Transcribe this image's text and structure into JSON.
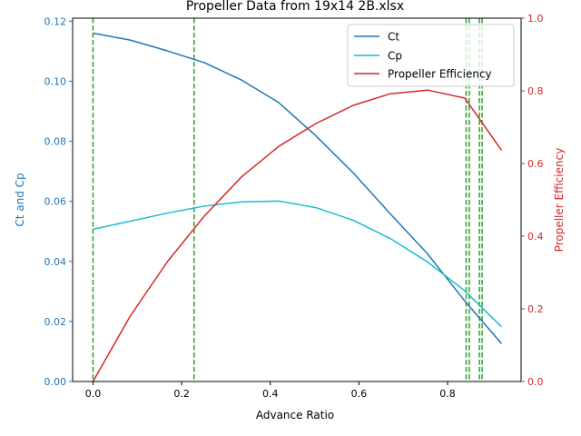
{
  "chart_data": {
    "type": "line",
    "title": "Propeller Data from 19x14 2B.xlsx",
    "xlabel": "Advance Ratio",
    "ylabel": "Ct and Cp",
    "y2label": "Propeller Efficiency",
    "xlim": [
      -0.046,
      0.966
    ],
    "ylim": [
      0,
      0.121
    ],
    "y2lim": [
      0,
      1.0
    ],
    "xticks": [
      "0.0",
      "0.2",
      "0.4",
      "0.6",
      "0.8"
    ],
    "xtick_values": [
      0,
      0.2,
      0.4,
      0.6,
      0.8
    ],
    "yticks": [
      "0.00",
      "0.02",
      "0.04",
      "0.06",
      "0.08",
      "0.10",
      "0.12"
    ],
    "ytick_values": [
      0,
      0.02,
      0.04,
      0.06,
      0.08,
      0.1,
      0.12
    ],
    "y2ticks": [
      "0.0",
      "0.2",
      "0.4",
      "0.6",
      "0.8",
      "1.0"
    ],
    "y2tick_values": [
      0,
      0.2,
      0.4,
      0.6,
      0.8,
      1.0
    ],
    "legend_position": "top-right",
    "grid": false,
    "colors": {
      "ct": "#1f77b4",
      "cp": "#17becf",
      "efficiency": "#d62728",
      "left_axis": "#1f77b4",
      "right_axis": "#d62728",
      "vlines": "#2ca02c"
    },
    "series": [
      {
        "name": "Ct",
        "axis": "left",
        "x": [
          0,
          0.084,
          0.168,
          0.251,
          0.335,
          0.419,
          0.503,
          0.587,
          0.671,
          0.755,
          0.839,
          0.922
        ],
        "values": [
          0.116,
          0.1137,
          0.1101,
          0.1062,
          0.1004,
          0.0929,
          0.0818,
          0.0695,
          0.0558,
          0.0425,
          0.0268,
          0.0126
        ]
      },
      {
        "name": "Cp",
        "axis": "left",
        "x": [
          0,
          0.084,
          0.168,
          0.251,
          0.335,
          0.419,
          0.503,
          0.587,
          0.671,
          0.755,
          0.839,
          0.922
        ],
        "values": [
          0.0507,
          0.0534,
          0.0561,
          0.0584,
          0.0598,
          0.0601,
          0.0579,
          0.0537,
          0.0476,
          0.0398,
          0.0302,
          0.0182
        ]
      },
      {
        "name": "Propeller Efficiency",
        "axis": "right",
        "x": [
          0,
          0.084,
          0.168,
          0.251,
          0.335,
          0.419,
          0.503,
          0.587,
          0.671,
          0.755,
          0.839,
          0.922
        ],
        "values": [
          0,
          0.18,
          0.33,
          0.455,
          0.563,
          0.647,
          0.71,
          0.76,
          0.792,
          0.802,
          0.78,
          0.636
        ]
      }
    ],
    "vlines": [
      0,
      0.228,
      0.842,
      0.849,
      0.872,
      0.878
    ]
  }
}
